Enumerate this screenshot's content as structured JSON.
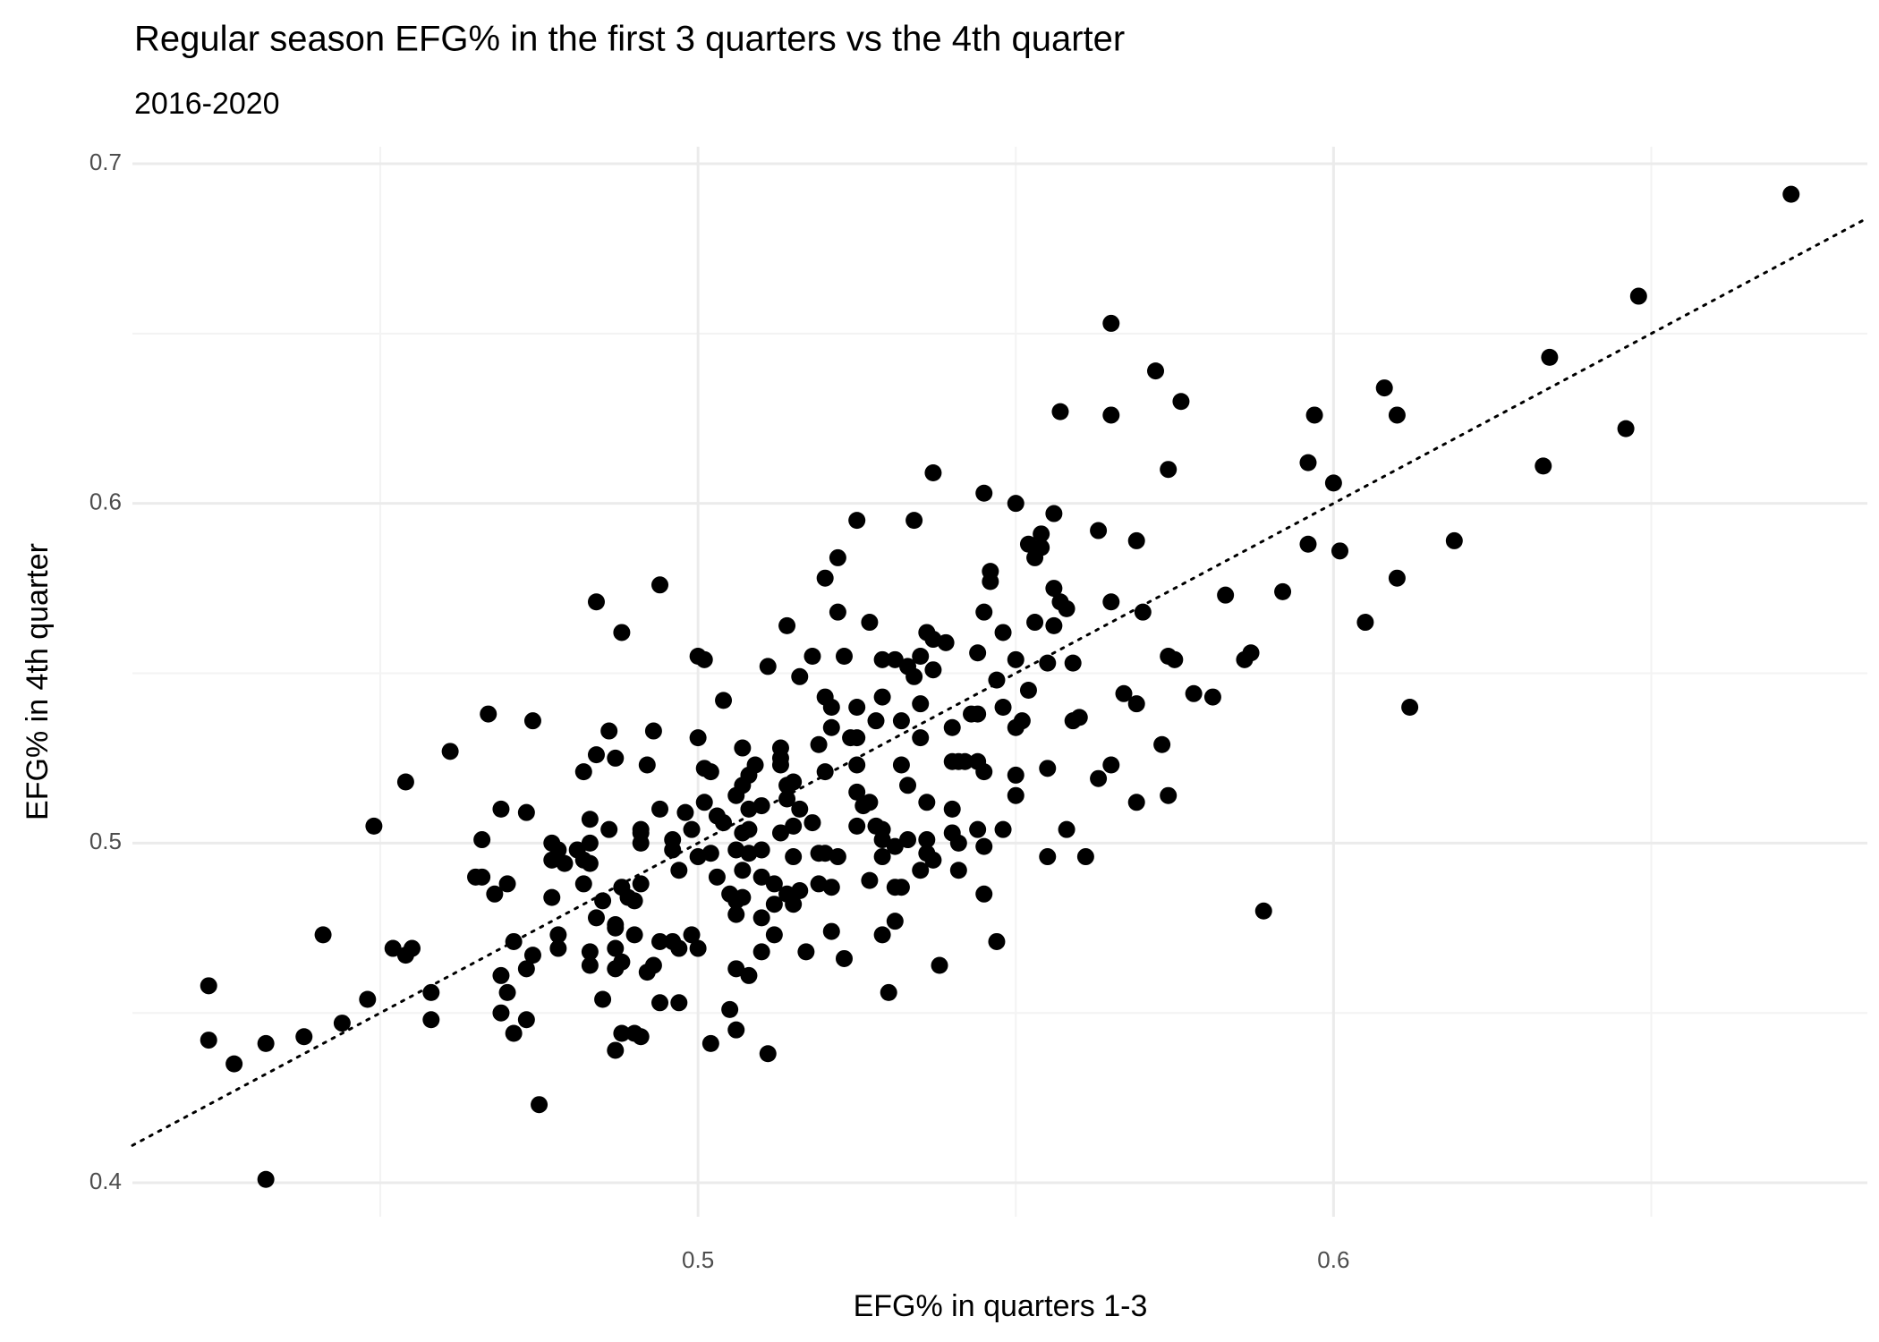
{
  "chart_data": {
    "type": "scatter",
    "title": "Regular season EFG% in the first 3 quarters vs the 4th quarter",
    "subtitle": "2016-2020",
    "x_label": "EFG% in quarters 1-3",
    "y_label": "EFG% in 4th quarter",
    "xlim": [
      0.411,
      0.684
    ],
    "ylim": [
      0.39,
      0.705
    ],
    "xticks": [
      0.5,
      0.6
    ],
    "yticks": [
      0.4,
      0.5,
      0.6,
      0.7
    ],
    "x_minor_grid": [
      0.45,
      0.55,
      0.65
    ],
    "y_minor_grid": [
      0.45,
      0.55,
      0.65
    ],
    "grid": true,
    "color": "#000000",
    "abline": {
      "intercept": 0,
      "slope": 1,
      "style": "dotted"
    },
    "x": [
      0.672,
      0.648,
      0.634,
      0.646,
      0.633,
      0.608,
      0.61,
      0.597,
      0.596,
      0.6,
      0.596,
      0.601,
      0.619,
      0.61,
      0.605,
      0.592,
      0.583,
      0.612,
      0.589,
      0.565,
      0.572,
      0.576,
      0.565,
      0.557,
      0.574,
      0.537,
      0.545,
      0.55,
      0.556,
      0.534,
      0.525,
      0.563,
      0.569,
      0.554,
      0.552,
      0.554,
      0.553,
      0.522,
      0.546,
      0.52,
      0.546,
      0.556,
      0.557,
      0.565,
      0.558,
      0.57,
      0.545,
      0.553,
      0.556,
      0.522,
      0.527,
      0.514,
      0.536,
      0.548,
      0.537,
      0.539,
      0.574,
      0.587,
      0.575,
      0.586,
      0.559,
      0.555,
      0.55,
      0.544,
      0.535,
      0.531,
      0.529,
      0.523,
      0.518,
      0.511,
      0.5,
      0.501,
      0.533,
      0.534,
      0.537,
      0.547,
      0.552,
      0.516,
      0.504,
      0.52,
      0.525,
      0.529,
      0.535,
      0.521,
      0.567,
      0.578,
      0.581,
      0.569,
      0.56,
      0.559,
      0.551,
      0.55,
      0.543,
      0.544,
      0.548,
      0.528,
      0.532,
      0.54,
      0.521,
      0.535,
      0.524,
      0.525,
      0.519,
      0.513,
      0.5,
      0.507,
      0.573,
      0.54,
      0.541,
      0.544,
      0.545,
      0.542,
      0.55,
      0.555,
      0.565,
      0.563,
      0.525,
      0.532,
      0.52,
      0.501,
      0.502,
      0.509,
      0.513,
      0.508,
      0.513,
      0.507,
      0.506,
      0.515,
      0.514,
      0.533,
      0.525,
      0.526,
      0.527,
      0.536,
      0.54,
      0.55,
      0.569,
      0.574,
      0.514,
      0.516,
      0.51,
      0.508,
      0.501,
      0.498,
      0.494,
      0.503,
      0.504,
      0.499,
      0.508,
      0.507,
      0.513,
      0.515,
      0.518,
      0.525,
      0.528,
      0.529,
      0.529,
      0.533,
      0.536,
      0.54,
      0.544,
      0.548,
      0.558,
      0.541,
      0.545,
      0.531,
      0.536,
      0.537,
      0.529,
      0.52,
      0.519,
      0.522,
      0.515,
      0.51,
      0.508,
      0.506,
      0.502,
      0.5,
      0.496,
      0.491,
      0.491,
      0.486,
      0.483,
      0.483,
      0.477,
      0.478,
      0.481,
      0.491,
      0.555,
      0.561,
      0.541,
      0.535,
      0.527,
      0.521,
      0.519,
      0.531,
      0.545,
      0.516,
      0.514,
      0.515,
      0.512,
      0.507,
      0.505,
      0.506,
      0.503,
      0.497,
      0.507,
      0.51,
      0.512,
      0.477,
      0.479,
      0.482,
      0.483,
      0.465,
      0.466,
      0.47,
      0.468,
      0.477,
      0.482,
      0.488,
      0.491,
      0.485,
      0.489,
      0.49,
      0.484,
      0.487,
      0.487,
      0.49,
      0.494,
      0.496,
      0.499,
      0.5,
      0.497,
      0.506,
      0.51,
      0.512,
      0.51,
      0.506,
      0.508,
      0.517,
      0.521,
      0.523,
      0.529,
      0.531,
      0.532,
      0.547,
      0.538,
      0.53,
      0.478,
      0.478,
      0.471,
      0.474,
      0.483,
      0.487,
      0.488,
      0.473,
      0.469,
      0.483,
      0.487,
      0.492,
      0.493,
      0.47,
      0.485,
      0.494,
      0.497,
      0.505,
      0.506,
      0.502,
      0.469,
      0.473,
      0.471,
      0.488,
      0.49,
      0.491,
      0.487,
      0.511,
      0.475,
      0.458,
      0.458,
      0.455,
      0.454,
      0.452,
      0.448,
      0.444,
      0.441,
      0.438,
      0.432,
      0.427,
      0.423,
      0.423,
      0.432,
      0.449,
      0.454,
      0.461,
      0.467,
      0.474,
      0.469,
      0.473,
      0.466,
      0.482,
      0.484,
      0.486,
      0.487,
      0.492,
      0.493,
      0.484,
      0.488,
      0.494,
      0.496
    ],
    "values": [
      0.691,
      0.661,
      0.643,
      0.622,
      0.611,
      0.634,
      0.626,
      0.626,
      0.612,
      0.606,
      0.588,
      0.586,
      0.589,
      0.578,
      0.565,
      0.574,
      0.573,
      0.54,
      0.48,
      0.653,
      0.639,
      0.63,
      0.626,
      0.627,
      0.61,
      0.609,
      0.603,
      0.6,
      0.597,
      0.595,
      0.595,
      0.592,
      0.589,
      0.591,
      0.588,
      0.587,
      0.584,
      0.584,
      0.58,
      0.578,
      0.577,
      0.575,
      0.571,
      0.571,
      0.569,
      0.568,
      0.568,
      0.565,
      0.564,
      0.568,
      0.565,
      0.564,
      0.562,
      0.562,
      0.56,
      0.559,
      0.555,
      0.556,
      0.554,
      0.554,
      0.553,
      0.553,
      0.554,
      0.556,
      0.555,
      0.554,
      0.554,
      0.555,
      0.555,
      0.552,
      0.555,
      0.554,
      0.552,
      0.549,
      0.551,
      0.548,
      0.545,
      0.549,
      0.542,
      0.543,
      0.54,
      0.543,
      0.541,
      0.54,
      0.544,
      0.544,
      0.543,
      0.541,
      0.537,
      0.536,
      0.536,
      0.534,
      0.538,
      0.538,
      0.54,
      0.536,
      0.536,
      0.534,
      0.534,
      0.531,
      0.531,
      0.531,
      0.529,
      0.528,
      0.531,
      0.528,
      0.529,
      0.524,
      0.524,
      0.524,
      0.521,
      0.524,
      0.52,
      0.522,
      0.523,
      0.519,
      0.523,
      0.523,
      0.521,
      0.522,
      0.521,
      0.523,
      0.523,
      0.52,
      0.525,
      0.517,
      0.514,
      0.518,
      0.517,
      0.517,
      0.515,
      0.511,
      0.512,
      0.512,
      0.51,
      0.514,
      0.512,
      0.514,
      0.513,
      0.51,
      0.511,
      0.51,
      0.512,
      0.509,
      0.51,
      0.508,
      0.506,
      0.504,
      0.504,
      0.503,
      0.503,
      0.505,
      0.506,
      0.505,
      0.505,
      0.504,
      0.501,
      0.501,
      0.501,
      0.503,
      0.504,
      0.504,
      0.504,
      0.5,
      0.499,
      0.499,
      0.497,
      0.495,
      0.496,
      0.497,
      0.497,
      0.496,
      0.496,
      0.498,
      0.497,
      0.498,
      0.497,
      0.496,
      0.498,
      0.504,
      0.503,
      0.504,
      0.507,
      0.5,
      0.5,
      0.498,
      0.498,
      0.5,
      0.496,
      0.496,
      0.492,
      0.492,
      0.489,
      0.487,
      0.488,
      0.487,
      0.485,
      0.486,
      0.485,
      0.482,
      0.482,
      0.484,
      0.485,
      0.483,
      0.49,
      0.492,
      0.492,
      0.49,
      0.488,
      0.495,
      0.494,
      0.495,
      0.494,
      0.49,
      0.49,
      0.488,
      0.485,
      0.484,
      0.488,
      0.487,
      0.488,
      0.483,
      0.484,
      0.483,
      0.478,
      0.476,
      0.475,
      0.473,
      0.471,
      0.471,
      0.473,
      0.469,
      0.469,
      0.479,
      0.478,
      0.473,
      0.468,
      0.463,
      0.461,
      0.468,
      0.474,
      0.466,
      0.473,
      0.477,
      0.487,
      0.471,
      0.464,
      0.456,
      0.473,
      0.469,
      0.471,
      0.467,
      0.468,
      0.469,
      0.465,
      0.463,
      0.461,
      0.464,
      0.463,
      0.462,
      0.464,
      0.456,
      0.454,
      0.453,
      0.453,
      0.451,
      0.445,
      0.441,
      0.45,
      0.448,
      0.444,
      0.444,
      0.444,
      0.443,
      0.439,
      0.438,
      0.423,
      0.456,
      0.448,
      0.469,
      0.467,
      0.469,
      0.454,
      0.447,
      0.473,
      0.443,
      0.441,
      0.435,
      0.442,
      0.458,
      0.401,
      0.505,
      0.518,
      0.527,
      0.538,
      0.536,
      0.51,
      0.509,
      0.501,
      0.521,
      0.526,
      0.533,
      0.525,
      0.523,
      0.533,
      0.571,
      0.562,
      0.576,
      0.501
    ]
  }
}
